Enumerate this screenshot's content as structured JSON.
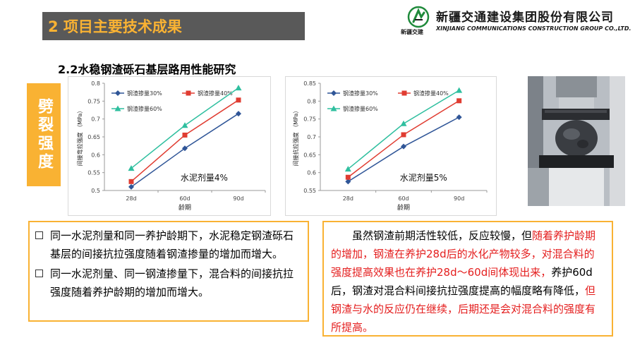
{
  "header": {
    "title": "2 项目主要技术成果",
    "accent_color": "#F9B233",
    "bar_color": "#595959"
  },
  "logo": {
    "icon": "logo-icon",
    "short_cn": "新疆交建",
    "company_cn": "新疆交通建设集团股份有限公司",
    "company_en": "XINJIANG COMMUNICATIONS CONSTRUCTION  GROUP CO.,LTD."
  },
  "section": {
    "title": "2.2水稳钢渣砾石基层路用性能研究",
    "side_label": "劈裂强度"
  },
  "chart_data": [
    {
      "type": "line",
      "categories": [
        "28d",
        "60d",
        "90d"
      ],
      "series": [
        {
          "name": "钢渣掺量30%",
          "values": [
            0.51,
            0.618,
            0.715
          ],
          "color": "#2F5597",
          "marker": "diamond"
        },
        {
          "name": "钢渣掺量40%",
          "values": [
            0.525,
            0.655,
            0.753
          ],
          "color": "#E03C31",
          "marker": "square"
        },
        {
          "name": "钢渣掺量60%",
          "values": [
            0.562,
            0.682,
            0.787
          ],
          "color": "#2FBF9F",
          "marker": "triangle"
        }
      ],
      "yticks": [
        "0.5",
        "0.55",
        "0.6",
        "0.65",
        "0.7",
        "0.75",
        "0.8"
      ],
      "ylim": [
        0.5,
        0.8
      ],
      "xlabel": "龄期",
      "ylabel": "间接弯拉强度 （MPa）",
      "annotation": "水泥剂量4%",
      "legend": "top-left"
    },
    {
      "type": "line",
      "categories": [
        "28d",
        "60d",
        "90d"
      ],
      "series": [
        {
          "name": "钢渣掺量30%",
          "values": [
            0.575,
            0.673,
            0.755
          ],
          "color": "#2F5597",
          "marker": "diamond"
        },
        {
          "name": "钢渣掺量40%",
          "values": [
            0.587,
            0.706,
            0.801
          ],
          "color": "#E03C31",
          "marker": "square"
        },
        {
          "name": "钢渣掺量60%",
          "values": [
            0.61,
            0.737,
            0.83
          ],
          "color": "#2FBF9F",
          "marker": "triangle"
        }
      ],
      "yticks": [
        "0.55",
        "0.6",
        "0.65",
        "0.7",
        "0.75",
        "0.8",
        "0.85"
      ],
      "ylim": [
        0.55,
        0.85
      ],
      "xlabel": "龄期",
      "ylabel": "间接抗拉强度 （MPa）",
      "annotation": "水泥剂量5%",
      "legend": "top-left"
    }
  ],
  "left_box": {
    "bullets": [
      "同一水泥剂量和同一养护龄期下，水泥稳定钢渣砾石基层的间接抗拉强度随着钢渣掺量的增加而增大。",
      "同一水泥剂量、同一钢渣掺量下，混合料的间接抗拉强度随着养护龄期的增加而增大。"
    ]
  },
  "right_box": {
    "seg1": "虽然钢渣前期活性较低，反应较慢，但",
    "seg2": "随着养护龄期的增加，钢渣在养护28d后的水化产物较多，对混合料的强度提高效果也在养护28d～60d间体现出来，",
    "seg3": "养护60d后，钢渣对混合料间接抗拉强度提高的幅度略有降低，",
    "seg4": "但钢渣与水的反应仍在继续，后期还是会对混合料的强度有所提高。"
  }
}
